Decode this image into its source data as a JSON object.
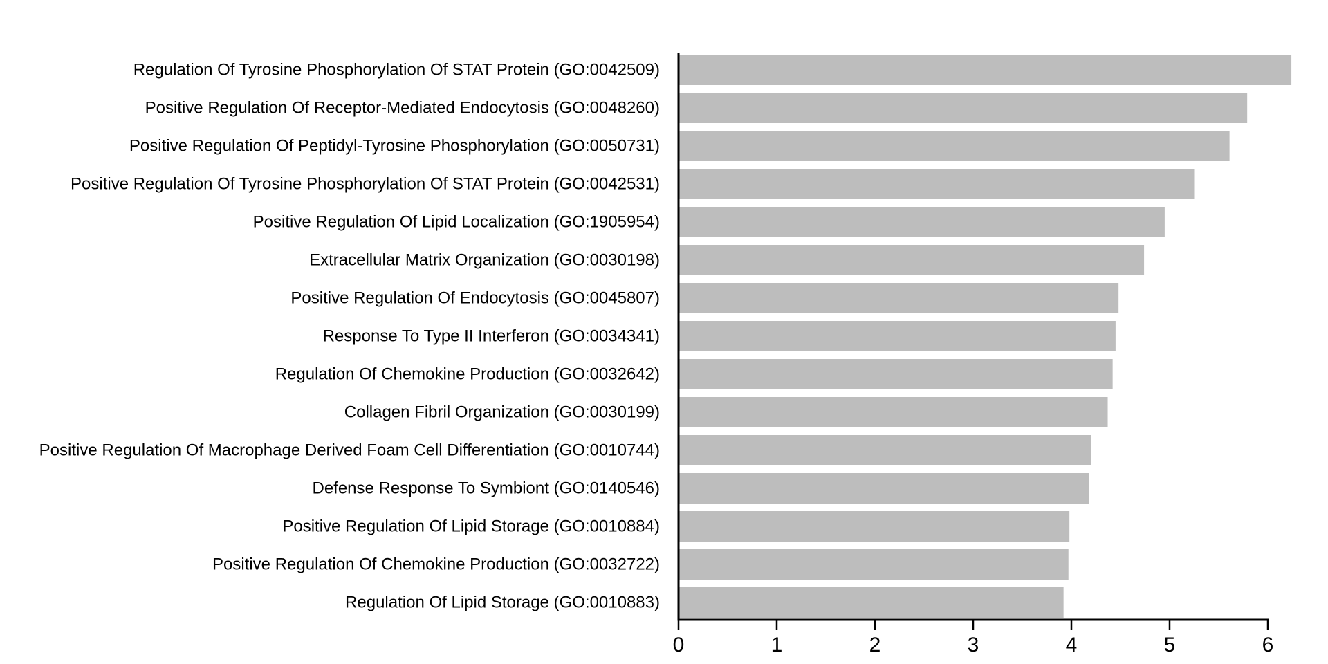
{
  "colors": {
    "bar": "#bdbdbd",
    "axis": "#000000",
    "background": "#ffffff"
  },
  "chart_data": {
    "type": "bar",
    "orientation": "horizontal",
    "title": "",
    "xlabel": "",
    "ylabel": "",
    "xlim": [
      0,
      6.25
    ],
    "x_ticks": [
      0,
      1,
      2,
      3,
      4,
      5,
      6
    ],
    "grid": false,
    "categories": [
      "Regulation Of Tyrosine Phosphorylation Of STAT Protein (GO:0042509)",
      "Positive Regulation Of Receptor-Mediated Endocytosis (GO:0048260)",
      "Positive Regulation Of Peptidyl-Tyrosine Phosphorylation (GO:0050731)",
      "Positive Regulation Of Tyrosine Phosphorylation Of STAT Protein (GO:0042531)",
      "Positive Regulation Of Lipid Localization (GO:1905954)",
      "Extracellular Matrix Organization (GO:0030198)",
      "Positive Regulation Of Endocytosis (GO:0045807)",
      "Response To Type II Interferon (GO:0034341)",
      "Regulation Of Chemokine Production (GO:0032642)",
      "Collagen Fibril Organization (GO:0030199)",
      "Positive Regulation Of Macrophage Derived Foam Cell Differentiation (GO:0010744)",
      "Defense Response To Symbiont (GO:0140546)",
      "Positive Regulation Of Lipid Storage (GO:0010884)",
      "Positive Regulation Of Chemokine Production (GO:0032722)",
      "Regulation Of Lipid Storage (GO:0010883)"
    ],
    "values": [
      6.24,
      5.79,
      5.61,
      5.25,
      4.95,
      4.74,
      4.48,
      4.45,
      4.42,
      4.37,
      4.2,
      4.18,
      3.98,
      3.97,
      3.92
    ]
  }
}
